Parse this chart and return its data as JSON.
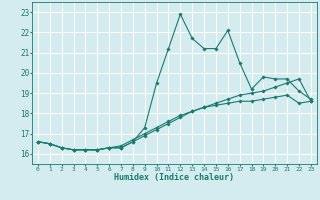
{
  "xlabel": "Humidex (Indice chaleur)",
  "xlim": [
    -0.5,
    23.5
  ],
  "ylim": [
    15.5,
    23.5
  ],
  "yticks": [
    16,
    17,
    18,
    19,
    20,
    21,
    22,
    23
  ],
  "xticks": [
    0,
    1,
    2,
    3,
    4,
    5,
    6,
    7,
    8,
    9,
    10,
    11,
    12,
    13,
    14,
    15,
    16,
    17,
    18,
    19,
    20,
    21,
    22,
    23
  ],
  "bg_color": "#d4ecf0",
  "grid_color": "#ffffff",
  "line_color": "#1a7a6e",
  "lines": [
    {
      "x": [
        0,
        1,
        2,
        3,
        4,
        5,
        6,
        7,
        8,
        9,
        10,
        11,
        12,
        13,
        14,
        15,
        16,
        17,
        18,
        19,
        20,
        21,
        22,
        23
      ],
      "y": [
        16.6,
        16.5,
        16.3,
        16.2,
        16.2,
        16.2,
        16.3,
        16.3,
        16.6,
        17.3,
        19.5,
        21.2,
        22.9,
        21.7,
        21.2,
        21.2,
        22.1,
        20.5,
        19.2,
        19.8,
        19.7,
        19.7,
        19.1,
        18.7
      ],
      "marker": "D",
      "markersize": 1.8
    },
    {
      "x": [
        0,
        1,
        2,
        3,
        4,
        5,
        6,
        7,
        8,
        9,
        10,
        11,
        12,
        13,
        14,
        15,
        16,
        17,
        18,
        19,
        20,
        21,
        22,
        23
      ],
      "y": [
        16.6,
        16.5,
        16.3,
        16.2,
        16.2,
        16.2,
        16.3,
        16.3,
        16.6,
        16.9,
        17.2,
        17.5,
        17.8,
        18.1,
        18.3,
        18.5,
        18.7,
        18.9,
        19.0,
        19.1,
        19.3,
        19.5,
        19.7,
        18.6
      ],
      "marker": "D",
      "markersize": 1.8
    },
    {
      "x": [
        0,
        1,
        2,
        3,
        4,
        5,
        6,
        7,
        8,
        9,
        10,
        11,
        12,
        13,
        14,
        15,
        16,
        17,
        18,
        19,
        20,
        21,
        22,
        23
      ],
      "y": [
        16.6,
        16.5,
        16.3,
        16.2,
        16.2,
        16.2,
        16.3,
        16.4,
        16.7,
        17.0,
        17.3,
        17.6,
        17.9,
        18.1,
        18.3,
        18.4,
        18.5,
        18.6,
        18.6,
        18.7,
        18.8,
        18.9,
        18.5,
        18.6
      ],
      "marker": "D",
      "markersize": 1.8
    }
  ]
}
